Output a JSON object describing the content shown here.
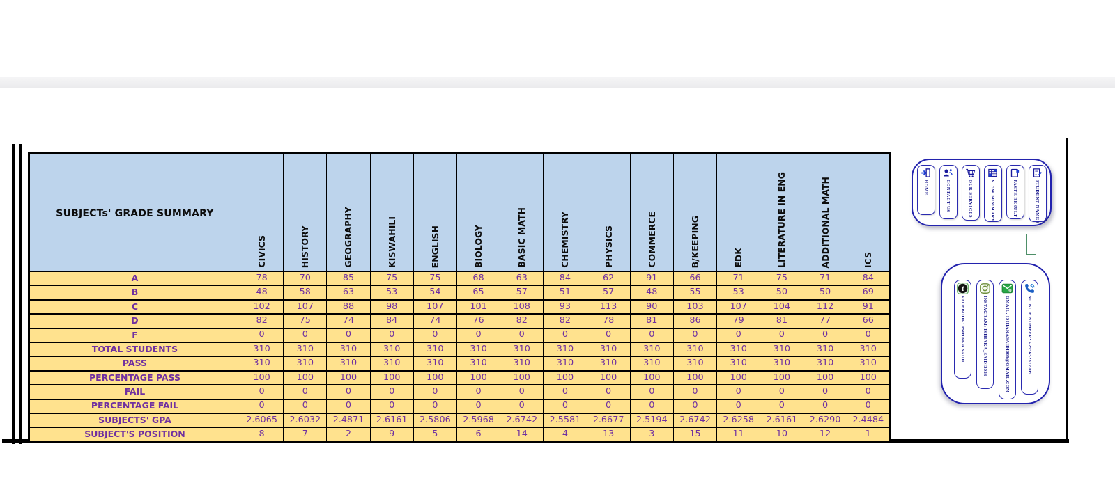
{
  "table": {
    "title": "SUBJECTs' GRADE SUMMARY",
    "subjects": [
      "CIVICS",
      "HISTORY",
      "GEOGRAPHY",
      "KISWAHILI",
      "ENGLISH",
      "BIOLOGY",
      "BASIC MATH",
      "CHEMISTRY",
      "PHYSICS",
      "COMMERCE",
      "B/KEEPING",
      "EDK",
      "LITERATURE IN ENG",
      "ADDITIONAL MATH",
      "ICS"
    ],
    "rows": [
      {
        "label": "A",
        "values": [
          78,
          70,
          85,
          75,
          75,
          68,
          63,
          84,
          62,
          91,
          66,
          71,
          75,
          71,
          84
        ]
      },
      {
        "label": "B",
        "values": [
          48,
          58,
          63,
          53,
          54,
          65,
          57,
          51,
          57,
          48,
          55,
          53,
          50,
          50,
          69
        ]
      },
      {
        "label": "C",
        "values": [
          102,
          107,
          88,
          98,
          107,
          101,
          108,
          93,
          113,
          90,
          103,
          107,
          104,
          112,
          91
        ]
      },
      {
        "label": "D",
        "values": [
          82,
          75,
          74,
          84,
          74,
          76,
          82,
          82,
          78,
          81,
          86,
          79,
          81,
          77,
          66
        ]
      },
      {
        "label": "F",
        "values": [
          0,
          0,
          0,
          0,
          0,
          0,
          0,
          0,
          0,
          0,
          0,
          0,
          0,
          0,
          0
        ]
      },
      {
        "label": "TOTAL STUDENTS",
        "values": [
          310,
          310,
          310,
          310,
          310,
          310,
          310,
          310,
          310,
          310,
          310,
          310,
          310,
          310,
          310
        ]
      },
      {
        "label": "PASS",
        "values": [
          310,
          310,
          310,
          310,
          310,
          310,
          310,
          310,
          310,
          310,
          310,
          310,
          310,
          310,
          310
        ]
      },
      {
        "label": "PERCENTAGE PASS",
        "values": [
          100,
          100,
          100,
          100,
          100,
          100,
          100,
          100,
          100,
          100,
          100,
          100,
          100,
          100,
          100
        ]
      },
      {
        "label": "FAIL",
        "values": [
          0,
          0,
          0,
          0,
          0,
          0,
          0,
          0,
          0,
          0,
          0,
          0,
          0,
          0,
          0
        ]
      },
      {
        "label": "PERCENTAGE FAIL",
        "values": [
          0,
          0,
          0,
          0,
          0,
          0,
          0,
          0,
          0,
          0,
          0,
          0,
          0,
          0,
          0
        ]
      },
      {
        "label": "SUBJECTS' GPA",
        "values": [
          "2.6065",
          "2.6032",
          "2.4871",
          "2.6161",
          "2.5806",
          "2.5968",
          "2.6742",
          "2.5581",
          "2.6677",
          "2.5194",
          "2.6742",
          "2.6258",
          "2.6161",
          "2.6290",
          "2.4484"
        ]
      },
      {
        "label": "SUBJECT'S POSITION",
        "values": [
          8,
          7,
          2,
          9,
          5,
          6,
          14,
          4,
          13,
          3,
          15,
          11,
          10,
          12,
          1
        ]
      }
    ]
  },
  "nav": {
    "buttons": [
      {
        "label": "HOME",
        "icon": "home-icon"
      },
      {
        "label": "CONTACT US",
        "icon": "contact-us-icon"
      },
      {
        "label": "OUR SERVICES",
        "icon": "services-cart-icon"
      },
      {
        "label": "VIEW SUMMARY",
        "icon": "view-summary-icon"
      },
      {
        "label": "PASTE RESULT",
        "icon": "paste-result-icon"
      },
      {
        "label": "STUDENT NAMES",
        "icon": "student-names-icon"
      }
    ]
  },
  "contacts": {
    "items": [
      {
        "label": "FACEBOOK: ISIHAKA SAIDI",
        "icon": "facebook-icon"
      },
      {
        "label": "INSTAGRAM: ISIHAKA_SAIDI2023",
        "icon": "instagram-icon"
      },
      {
        "label": "GMAIL: ISIHAKASAIDI089@GMAIL.COM",
        "icon": "gmail-icon"
      },
      {
        "label": "MOBILE NUMBER: +255652372705",
        "icon": "phone-icon"
      }
    ]
  },
  "colors": {
    "header_fill": "#bdd4ec",
    "row_fill": "#ffe28e",
    "cell_text": "#7030A0",
    "panel_border": "#2323ae",
    "label_navy": "#1a1a8c",
    "green_accent": "#28a745"
  }
}
